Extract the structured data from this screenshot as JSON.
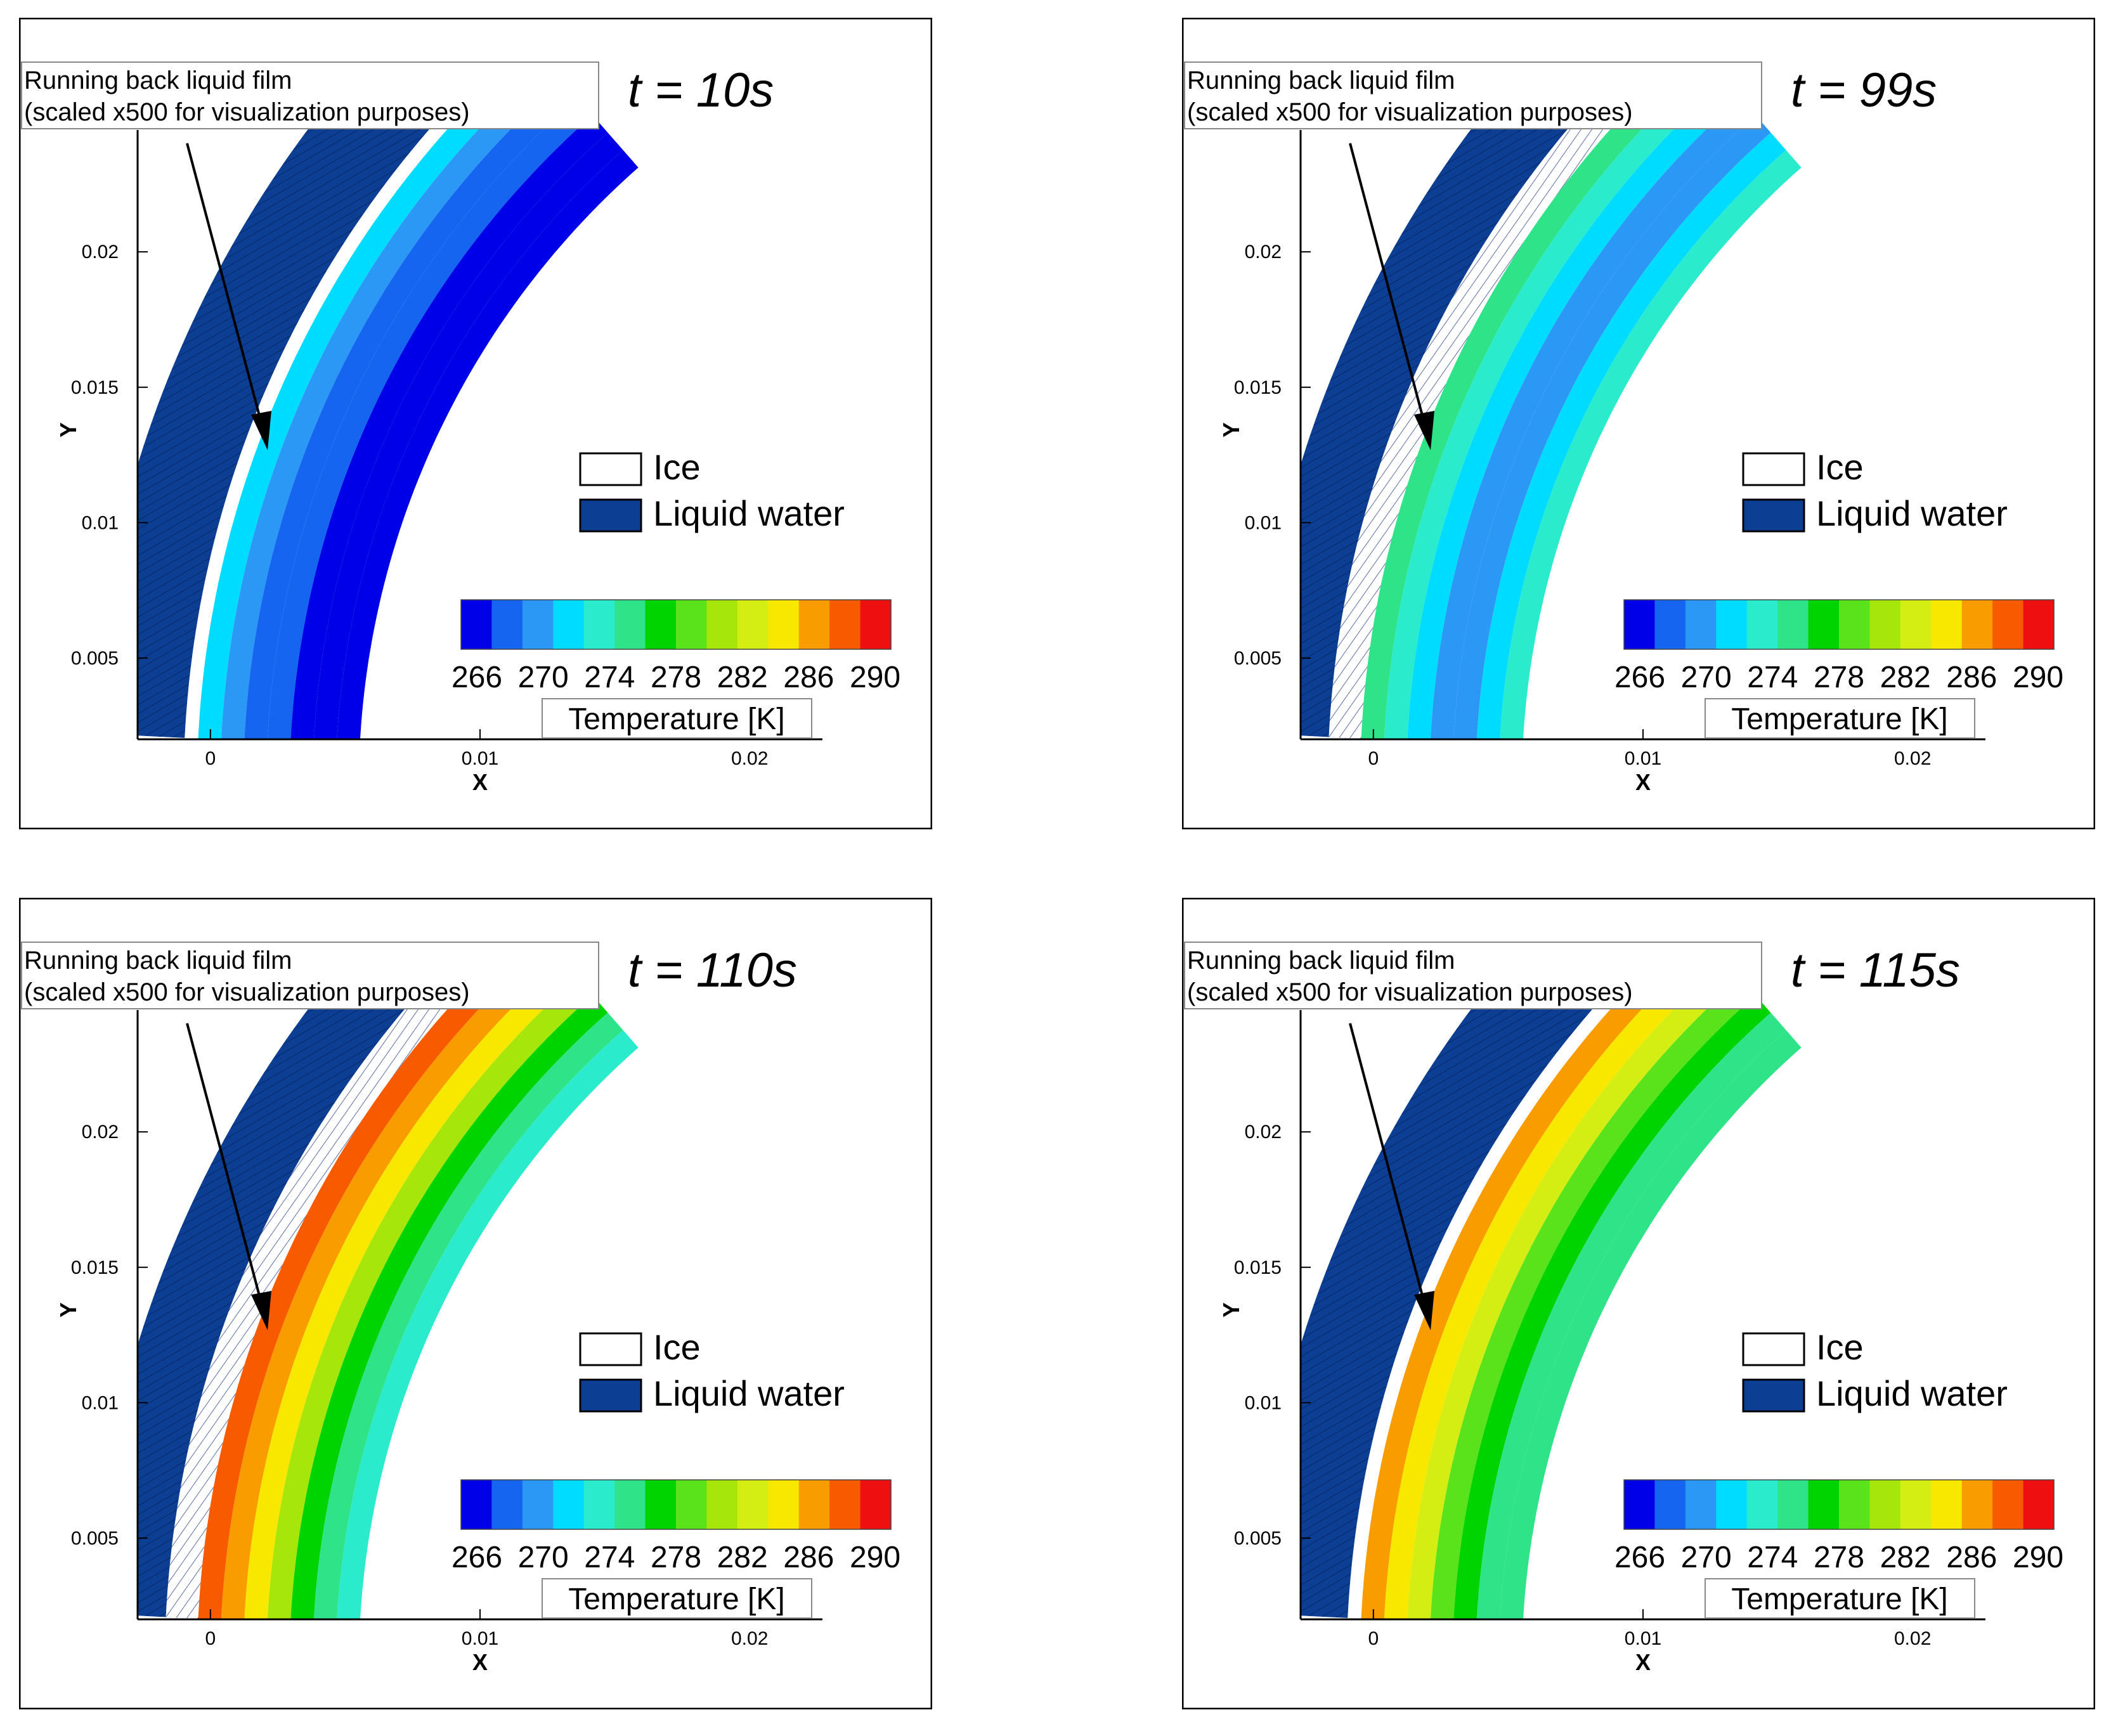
{
  "figure": {
    "annotation_line1": "Running back liquid film",
    "annotation_line2": "(scaled x500 for visualization purposes)",
    "legend_ice": "Ice",
    "legend_water": "Liquid water",
    "colorbar_title": "Temperature [K]",
    "colorbar_ticks": [
      "266",
      "270",
      "274",
      "278",
      "282",
      "286",
      "290"
    ],
    "colorbar_colors": [
      "#0000e8",
      "#1565f0",
      "#2b98f5",
      "#00dcff",
      "#2aeccc",
      "#2fe388",
      "#00d400",
      "#5ae21a",
      "#a6e60a",
      "#d4ee14",
      "#f8e800",
      "#f89c00",
      "#f85a00",
      "#ee1010"
    ],
    "ice_color": "#ffffff",
    "water_color": "#0c3f94"
  },
  "chart_data": [
    {
      "type": "contour",
      "title": "t = 10s",
      "time_s": 10,
      "xlabel": "X",
      "ylabel": "Y",
      "xlim": [
        -0.0027,
        0.0227
      ],
      "ylim": [
        0.002,
        0.0245
      ],
      "x_ticks": [
        "0",
        "0.01",
        "0.02"
      ],
      "y_ticks": [
        "0.005",
        "0.01",
        "0.015",
        "0.02"
      ],
      "colorbar": {
        "min": 266,
        "max": 290,
        "label": "Temperature [K]"
      },
      "legend": [
        "Ice",
        "Liquid water"
      ]
    },
    {
      "type": "contour",
      "title": "t = 99s",
      "time_s": 99,
      "xlabel": "X",
      "ylabel": "Y",
      "xlim": [
        -0.0027,
        0.0227
      ],
      "ylim": [
        0.002,
        0.0245
      ],
      "x_ticks": [
        "0",
        "0.01",
        "0.02"
      ],
      "y_ticks": [
        "0.005",
        "0.01",
        "0.015",
        "0.02"
      ],
      "colorbar": {
        "min": 266,
        "max": 290,
        "label": "Temperature [K]"
      },
      "legend": [
        "Ice",
        "Liquid water"
      ]
    },
    {
      "type": "contour",
      "title": "t = 110s",
      "time_s": 110,
      "xlabel": "X",
      "ylabel": "Y",
      "xlim": [
        -0.0027,
        0.0227
      ],
      "ylim": [
        0.002,
        0.0245
      ],
      "x_ticks": [
        "0",
        "0.01",
        "0.02"
      ],
      "y_ticks": [
        "0.005",
        "0.01",
        "0.015",
        "0.02"
      ],
      "colorbar": {
        "min": 266,
        "max": 290,
        "label": "Temperature [K]"
      },
      "legend": [
        "Ice",
        "Liquid water"
      ]
    },
    {
      "type": "contour",
      "title": "t = 115s",
      "time_s": 115,
      "xlabel": "X",
      "ylabel": "Y",
      "xlim": [
        -0.0027,
        0.0227
      ],
      "ylim": [
        0.002,
        0.0245
      ],
      "x_ticks": [
        "0",
        "0.01",
        "0.02"
      ],
      "y_ticks": [
        "0.005",
        "0.01",
        "0.015",
        "0.02"
      ],
      "colorbar": {
        "min": 266,
        "max": 290,
        "label": "Temperature [K]"
      },
      "legend": [
        "Ice",
        "Liquid water"
      ]
    }
  ]
}
